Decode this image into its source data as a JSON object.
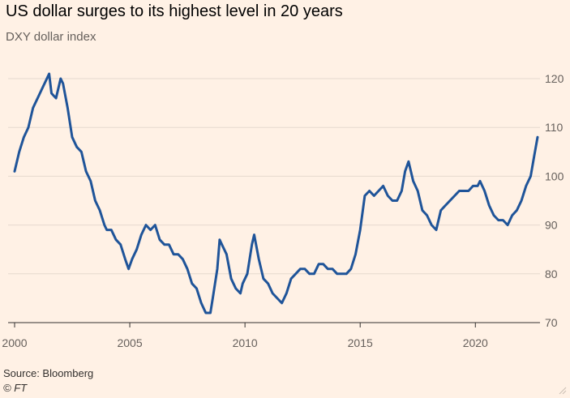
{
  "header": {
    "title": "US dollar surges to its highest level in 20 years",
    "subtitle": "DXY dollar index"
  },
  "footer": {
    "source": "Source: Bloomberg",
    "credit": "© FT"
  },
  "colors": {
    "background": "#fff1e5",
    "line": "#1f5499",
    "grid": "#e6d9ce",
    "axis": "#33302e"
  },
  "chart_data": {
    "type": "line",
    "title": "US dollar surges to its highest level in 20 years",
    "subtitle": "DXY dollar index",
    "xlabel": "",
    "ylabel": "",
    "xlim": [
      2000,
      2022.7
    ],
    "ylim": [
      70,
      122
    ],
    "y_axis_side": "right",
    "grid": true,
    "x_ticks": [
      2000,
      2005,
      2010,
      2015,
      2020
    ],
    "x_tick_labels": [
      "2000",
      "2005",
      "2010",
      "2015",
      "2020"
    ],
    "y_ticks": [
      70,
      80,
      90,
      100,
      110,
      120
    ],
    "y_tick_labels": [
      "70",
      "80",
      "90",
      "100",
      "110",
      "120"
    ],
    "series": [
      {
        "color": "#1f5499",
        "x": [
          2000.0,
          2000.2,
          2000.4,
          2000.6,
          2000.8,
          2001.0,
          2001.2,
          2001.4,
          2001.5,
          2001.6,
          2001.8,
          2002.0,
          2002.1,
          2002.3,
          2002.5,
          2002.7,
          2002.9,
          2003.1,
          2003.3,
          2003.5,
          2003.7,
          2003.9,
          2004.0,
          2004.2,
          2004.4,
          2004.6,
          2004.8,
          2004.95,
          2005.1,
          2005.3,
          2005.5,
          2005.7,
          2005.9,
          2006.1,
          2006.3,
          2006.5,
          2006.7,
          2006.9,
          2007.1,
          2007.3,
          2007.5,
          2007.7,
          2007.9,
          2008.1,
          2008.3,
          2008.5,
          2008.6,
          2008.8,
          2008.9,
          2009.0,
          2009.2,
          2009.4,
          2009.6,
          2009.8,
          2009.9,
          2010.1,
          2010.3,
          2010.4,
          2010.6,
          2010.8,
          2011.0,
          2011.2,
          2011.4,
          2011.6,
          2011.8,
          2012.0,
          2012.2,
          2012.4,
          2012.6,
          2012.8,
          2013.0,
          2013.2,
          2013.4,
          2013.6,
          2013.8,
          2014.0,
          2014.2,
          2014.4,
          2014.6,
          2014.8,
          2015.0,
          2015.2,
          2015.4,
          2015.6,
          2015.8,
          2016.0,
          2016.2,
          2016.4,
          2016.6,
          2016.8,
          2016.95,
          2017.1,
          2017.3,
          2017.5,
          2017.7,
          2017.9,
          2018.1,
          2018.3,
          2018.5,
          2018.7,
          2018.9,
          2019.1,
          2019.3,
          2019.5,
          2019.7,
          2019.9,
          2020.1,
          2020.2,
          2020.4,
          2020.6,
          2020.8,
          2021.0,
          2021.2,
          2021.4,
          2021.6,
          2021.8,
          2022.0,
          2022.2,
          2022.4,
          2022.55,
          2022.7
        ],
        "values": [
          101,
          105,
          108,
          110,
          114,
          116,
          118,
          120,
          121,
          117,
          116,
          120,
          119,
          114,
          108,
          106,
          105,
          101,
          99,
          95,
          93,
          90,
          89,
          89,
          87,
          86,
          83,
          81,
          83,
          85,
          88,
          90,
          89,
          90,
          87,
          86,
          86,
          84,
          84,
          83,
          81,
          78,
          77,
          74,
          72,
          72,
          75,
          81,
          87,
          86,
          84,
          79,
          77,
          76,
          78,
          80,
          86,
          88,
          83,
          79,
          78,
          76,
          75,
          74,
          76,
          79,
          80,
          81,
          81,
          80,
          80,
          82,
          82,
          81,
          81,
          80,
          80,
          80,
          81,
          84,
          89,
          96,
          97,
          96,
          97,
          98,
          96,
          95,
          95,
          97,
          101,
          103,
          99,
          97,
          93,
          92,
          90,
          89,
          93,
          94,
          95,
          96,
          97,
          97,
          97,
          98,
          98,
          99,
          97,
          94,
          92,
          91,
          91,
          90,
          92,
          93,
          95,
          98,
          100,
          104,
          108
        ]
      }
    ]
  }
}
